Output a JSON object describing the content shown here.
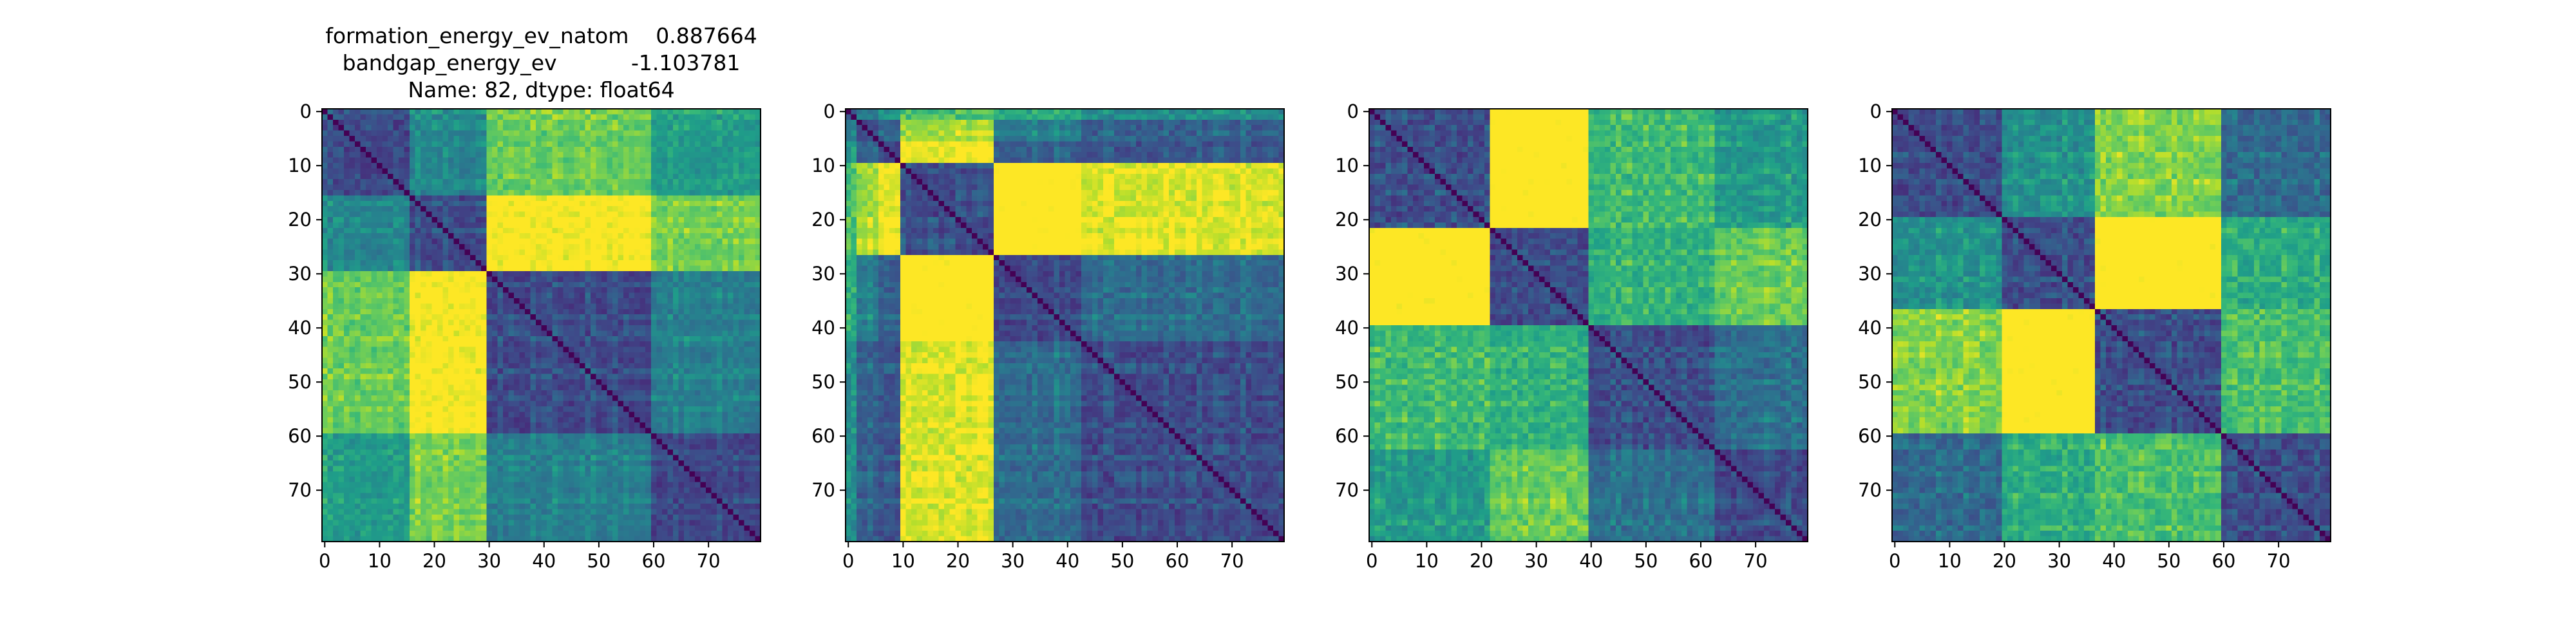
{
  "chart_data": [
    {
      "type": "heatmap",
      "title": [
        "formation_energy_ev_natom    0.887664",
        "bandgap_energy_ev           -1.103781",
        "Name: 82, dtype: float64"
      ],
      "xlim": [
        -0.5,
        79.5
      ],
      "ylim": [
        79.5,
        -0.5
      ],
      "xticks": [
        0,
        10,
        20,
        30,
        40,
        50,
        60,
        70
      ],
      "yticks": [
        0,
        10,
        20,
        30,
        40,
        50,
        60,
        70
      ]
    },
    {
      "type": "heatmap",
      "xlim": [
        -0.5,
        79.5
      ],
      "ylim": [
        79.5,
        -0.5
      ],
      "xticks": [
        0,
        10,
        20,
        30,
        40,
        50,
        60,
        70
      ],
      "yticks": [
        0,
        10,
        20,
        30,
        40,
        50,
        60,
        70
      ]
    },
    {
      "type": "heatmap",
      "xlim": [
        -0.5,
        79.5
      ],
      "ylim": [
        79.5,
        -0.5
      ],
      "xticks": [
        0,
        10,
        20,
        30,
        40,
        50,
        60,
        70
      ],
      "yticks": [
        0,
        10,
        20,
        30,
        40,
        50,
        60,
        70
      ]
    },
    {
      "type": "heatmap",
      "xlim": [
        -0.5,
        79.5
      ],
      "ylim": [
        79.5,
        -0.5
      ],
      "xticks": [
        0,
        10,
        20,
        30,
        40,
        50,
        60,
        70
      ],
      "yticks": [
        0,
        10,
        20,
        30,
        40,
        50,
        60,
        70
      ]
    }
  ]
}
